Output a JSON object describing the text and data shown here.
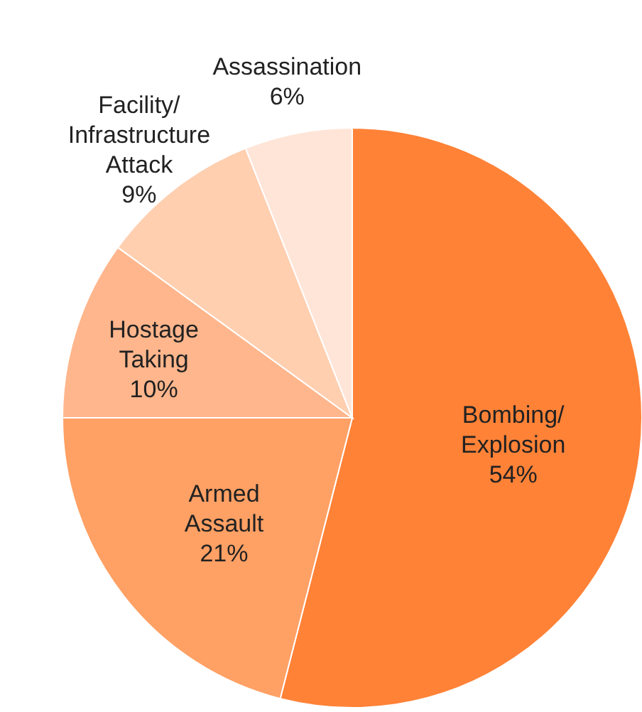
{
  "chart_data": {
    "type": "pie",
    "categories": [
      "Bombing/ Explosion",
      "Armed Assault",
      "Hostage Taking",
      "Facility/ Infrastructure Attack",
      "Assassination"
    ],
    "values": [
      54,
      21,
      10,
      9,
      6
    ],
    "value_labels": [
      "54%",
      "21%",
      "10%",
      "9%",
      "6%"
    ],
    "colors": [
      "#ff8237",
      "#ffa064",
      "#ffb68c",
      "#ffcfb0",
      "#ffe5d8"
    ]
  }
}
